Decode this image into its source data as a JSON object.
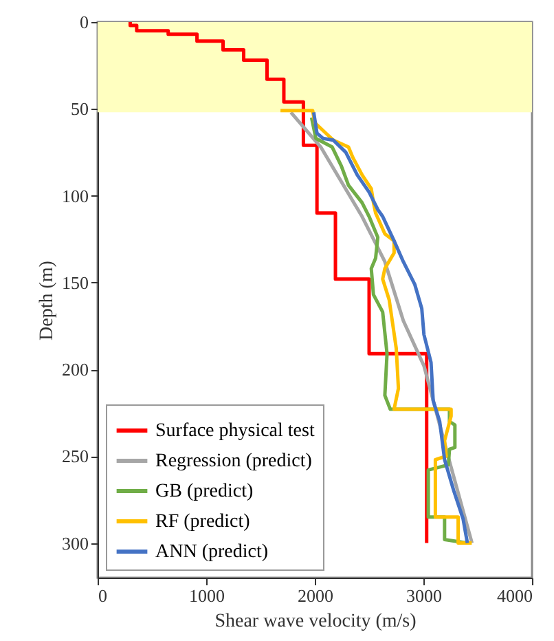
{
  "chart_data": {
    "type": "line",
    "xlabel": "Shear wave velocity (m/s)",
    "ylabel": "Depth (m)",
    "xlim": [
      0,
      4000
    ],
    "xticks": [
      0,
      1000,
      2000,
      3000,
      4000
    ],
    "ylim": [
      320,
      0
    ],
    "yticks": [
      0,
      50,
      100,
      150,
      200,
      250,
      300
    ],
    "grid": false,
    "legend": "bottom left",
    "line_style": "solid",
    "bands": [
      {
        "axis": "y",
        "from": 0,
        "to": 52,
        "color": "#ffffc0"
      }
    ],
    "series": [
      {
        "name": "Surface physical test",
        "color": "#ff0000",
        "x": [
          300,
          300,
          360,
          360,
          650,
          650,
          915,
          915,
          1155,
          1155,
          1345,
          1345,
          1560,
          1560,
          1715,
          1715,
          1895,
          1895,
          2020,
          2020,
          2190,
          2190,
          2500,
          2500,
          3030,
          3030
        ],
        "values": [
          0,
          2,
          2,
          5,
          5,
          7,
          7,
          11,
          11,
          16,
          16,
          22,
          22,
          33,
          33,
          46,
          46,
          71,
          71,
          110,
          110,
          148,
          148,
          191,
          191,
          300
        ]
      },
      {
        "name": "Regression (predict)",
        "color": "#a6a6a6",
        "x": [
          1780,
          2055,
          2435,
          2645,
          2815,
          3005,
          3236,
          3447
        ],
        "values": [
          52,
          72,
          112,
          138,
          172,
          198,
          252,
          300
        ]
      },
      {
        "name": "GB (predict)",
        "color": "#70ad47",
        "x": [
          1970,
          2010,
          2160,
          2245,
          2310,
          2435,
          2500,
          2580,
          2560,
          2520,
          2540,
          2625,
          2665,
          2645,
          2695,
          3240,
          3240,
          3290,
          3290,
          3240,
          3230,
          3045,
          3045,
          3195,
          3195,
          3400
        ],
        "values": [
          55,
          67,
          72,
          83,
          94,
          104,
          112,
          124,
          136,
          142,
          157,
          167,
          191,
          215,
          223,
          223,
          230,
          232,
          245,
          246,
          255,
          258,
          285,
          285,
          298,
          300
        ]
      },
      {
        "name": "RF (predict)",
        "color": "#ffc000",
        "x": [
          1684,
          1980,
          2000,
          2170,
          2310,
          2350,
          2435,
          2520,
          2540,
          2560,
          2645,
          2730,
          2730,
          2645,
          2625,
          2685,
          2750,
          2770,
          2730,
          3255,
          3255,
          3195,
          3210,
          3110,
          3110,
          3320,
          3320,
          3445
        ],
        "values": [
          51,
          51,
          58,
          68,
          72,
          78,
          88,
          96,
          104,
          110,
          122,
          126,
          133,
          142,
          148,
          160,
          188,
          211,
          223,
          223,
          227,
          241,
          250,
          252,
          285,
          285,
          300,
          300
        ]
      },
      {
        "name": "ANN (predict)",
        "color": "#4472c4",
        "x": [
          1990,
          2020,
          2075,
          2170,
          2285,
          2390,
          2500,
          2580,
          2625,
          2730,
          2815,
          2920,
          2985,
          3005,
          3070,
          3090,
          3150,
          3195,
          3280,
          3365,
          3405
        ],
        "values": [
          52,
          64,
          67,
          68,
          75,
          88,
          98,
          108,
          112,
          126,
          138,
          151,
          165,
          180,
          196,
          218,
          230,
          252,
          270,
          286,
          300
        ]
      }
    ]
  }
}
